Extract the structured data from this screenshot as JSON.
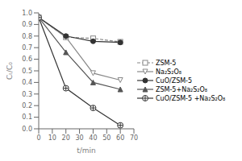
{
  "chart_data": {
    "type": "line",
    "xlabel": "t/min",
    "ylabel": "Cₜ/C₀",
    "xlim": [
      0,
      70
    ],
    "ylim": [
      0.0,
      1.0
    ],
    "xticks": [
      0,
      10,
      20,
      30,
      40,
      50,
      60,
      70
    ],
    "yticks": [
      {
        "value": 0,
        "label": "0.0"
      },
      0.1,
      0.2,
      0.3,
      0.4,
      0.5,
      0.6,
      0.7,
      0.8,
      0.9,
      {
        "value": 1,
        "label": "1.0"
      }
    ],
    "x": [
      0,
      20,
      40,
      60
    ],
    "series": [
      {
        "name": "ZSM-5",
        "color": "#888888",
        "marker": "open-square",
        "line_style": "dashed",
        "values": [
          0.96,
          0.79,
          0.78,
          0.75
        ]
      },
      {
        "name": "Na₂S₂O₈",
        "color": "#888888",
        "marker": "open-triangle-down",
        "line_style": "solid",
        "values": [
          0.96,
          0.79,
          0.48,
          0.42
        ]
      },
      {
        "name": "CuO/ZSM-5",
        "color": "#333333",
        "marker": "circle",
        "line_style": "solid",
        "values": [
          0.96,
          0.8,
          0.755,
          0.745
        ]
      },
      {
        "name": "ZSM-5+Na₂S₂O₈",
        "color": "#555555",
        "marker": "triangle-up",
        "line_style": "solid",
        "values": [
          0.96,
          0.66,
          0.4,
          0.34
        ]
      },
      {
        "name": "CuO/ZSM-5 +Na₂S₂O₈",
        "color": "#333333",
        "marker": "circled-plus",
        "line_style": "solid",
        "values": [
          0.96,
          0.35,
          0.18,
          0.03
        ]
      }
    ],
    "grid": false,
    "legend": "right"
  }
}
